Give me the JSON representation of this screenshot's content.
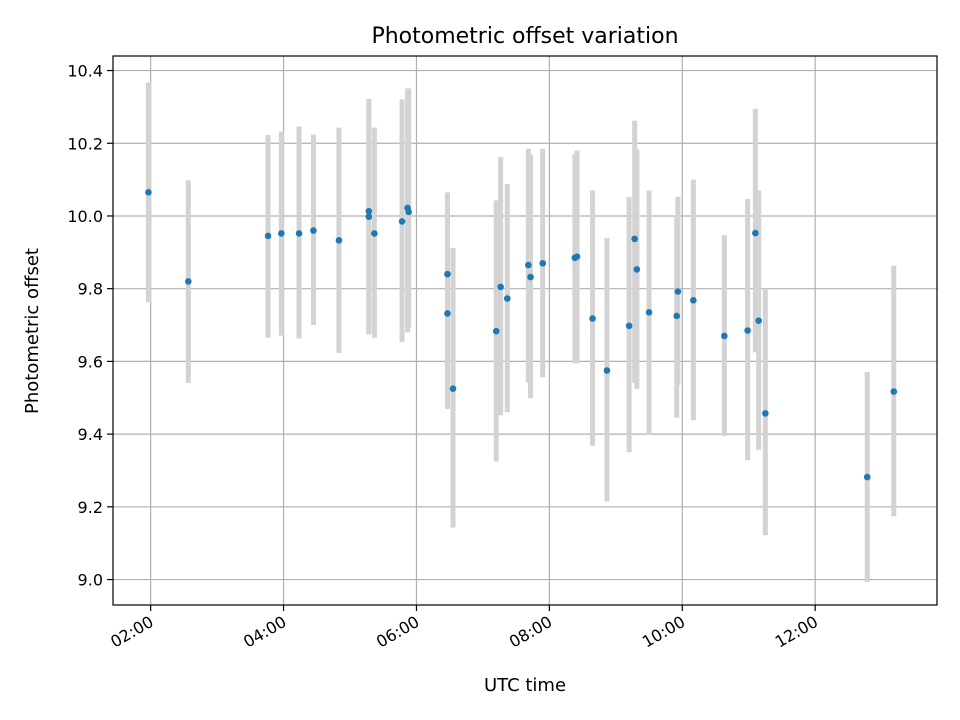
{
  "chart_data": {
    "type": "scatter",
    "title": "Photometric offset variation",
    "xlabel": "UTC time",
    "ylabel": "Photometric offset",
    "xlim": [
      "01:26",
      "13:50"
    ],
    "ylim": [
      8.93,
      10.44
    ],
    "xticks": [
      "02:00",
      "04:00",
      "06:00",
      "08:00",
      "10:00",
      "12:00"
    ],
    "yticks": [
      9.0,
      9.2,
      9.4,
      9.6,
      9.8,
      10.0,
      10.2,
      10.4
    ],
    "grid": true,
    "colors": {
      "points": "#1f77b4",
      "errorbars": "#d3d3d3"
    },
    "series": [
      {
        "x": [
          "01:58",
          "02:34",
          "03:46",
          "03:58",
          "04:14",
          "04:27",
          "04:50",
          "05:17",
          "05:17",
          "05:22",
          "05:47",
          "05:52",
          "05:53",
          "06:28",
          "06:28",
          "06:33",
          "07:12",
          "07:16",
          "07:22",
          "07:41",
          "07:43",
          "07:54",
          "08:23",
          "08:25",
          "08:39",
          "08:52",
          "09:12",
          "09:17",
          "09:19",
          "09:30",
          "09:55",
          "09:56",
          "10:10",
          "10:38",
          "10:59",
          "11:06",
          "11:09",
          "11:15",
          "12:47",
          "13:11"
        ],
        "y": [
          10.065,
          9.82,
          9.945,
          9.952,
          9.952,
          9.96,
          9.933,
          10.013,
          9.998,
          9.952,
          9.985,
          10.022,
          10.011,
          9.84,
          9.732,
          9.525,
          9.683,
          9.805,
          9.773,
          9.865,
          9.832,
          9.87,
          9.885,
          9.888,
          9.718,
          9.575,
          9.698,
          9.937,
          9.853,
          9.735,
          9.725,
          9.792,
          9.768,
          9.67,
          9.685,
          9.953,
          9.712,
          9.457,
          9.282,
          9.517
        ],
        "err_low": [
          9.763,
          9.541,
          9.665,
          9.671,
          9.663,
          9.7,
          9.623,
          9.675,
          9.674,
          9.665,
          9.653,
          9.68,
          9.693,
          9.47,
          9.469,
          9.143,
          9.325,
          9.452,
          9.46,
          9.542,
          9.499,
          9.556,
          9.595,
          9.595,
          9.368,
          9.215,
          9.35,
          9.541,
          9.524,
          9.398,
          9.445,
          9.535,
          9.438,
          9.395,
          9.328,
          9.625,
          9.357,
          9.122,
          8.993,
          9.174
        ],
        "err_high": [
          10.367,
          10.098,
          10.223,
          10.232,
          10.246,
          10.224,
          10.243,
          10.322,
          10.321,
          10.243,
          10.321,
          10.351,
          10.351,
          10.065,
          10.062,
          9.912,
          10.043,
          10.162,
          10.088,
          10.185,
          10.169,
          10.185,
          10.17,
          10.18,
          10.07,
          9.939,
          10.052,
          10.262,
          10.183,
          10.07,
          10.002,
          10.053,
          10.1,
          9.947,
          10.047,
          10.295,
          10.07,
          9.8,
          9.571,
          9.863
        ]
      }
    ]
  }
}
